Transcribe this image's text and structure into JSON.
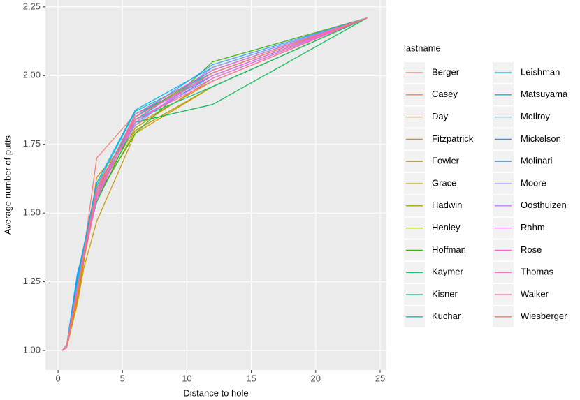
{
  "chart_data": {
    "type": "line",
    "x_label": "Distance to hole",
    "y_label": "Average number of putts",
    "legend_title": "lastname",
    "x": [
      0.33,
      0.67,
      1.5,
      2,
      3,
      6,
      12,
      24
    ],
    "xlim": [
      -0.98,
      25.49
    ],
    "xticks": [
      0,
      5,
      10,
      15,
      20,
      25
    ],
    "ylim": [
      0.929,
      2.275
    ],
    "yticks": [
      {
        "value": 1,
        "label": "1.00"
      },
      {
        "value": 1.25,
        "label": "1.25"
      },
      {
        "value": 1.5,
        "label": "1.50"
      },
      {
        "value": 1.75,
        "label": "1.75"
      },
      {
        "value": 2,
        "label": "2.00"
      },
      {
        "value": 2.25,
        "label": "2.25"
      }
    ],
    "grid": true,
    "series": [
      {
        "name": "Berger",
        "color": "#F8766D",
        "values": [
          1.0,
          1.01,
          1.22,
          1.36,
          1.7,
          1.86,
          2.0,
          2.21
        ]
      },
      {
        "name": "Casey",
        "color": "#F07F4F",
        "values": [
          1.0,
          1.02,
          1.2,
          1.35,
          1.6,
          1.83,
          2.01,
          2.21
        ]
      },
      {
        "name": "Day",
        "color": "#E58700",
        "values": [
          1.0,
          1.01,
          1.19,
          1.34,
          1.58,
          1.82,
          1.98,
          2.21
        ]
      },
      {
        "name": "Fitzpatrick",
        "color": "#D89000",
        "values": [
          1.0,
          1.01,
          1.18,
          1.32,
          1.63,
          1.8,
          1.96,
          2.21
        ]
      },
      {
        "name": "Fowler",
        "color": "#C99800",
        "values": [
          1.0,
          1.01,
          1.17,
          1.3,
          1.47,
          1.79,
          1.96,
          2.21
        ]
      },
      {
        "name": "Grace",
        "color": "#B79F00",
        "values": [
          1.0,
          1.02,
          1.2,
          1.33,
          1.55,
          1.8,
          1.96,
          2.21
        ]
      },
      {
        "name": "Hadwin",
        "color": "#A3A500",
        "values": [
          1.0,
          1.01,
          1.21,
          1.35,
          1.57,
          1.81,
          1.99,
          2.21
        ]
      },
      {
        "name": "Henley",
        "color": "#7CAE00",
        "values": [
          1.0,
          1.02,
          1.22,
          1.36,
          1.55,
          1.85,
          2.02,
          2.21
        ]
      },
      {
        "name": "Hoffman",
        "color": "#39B600",
        "values": [
          1.0,
          1.01,
          1.23,
          1.37,
          1.56,
          1.79,
          2.05,
          2.21
        ]
      },
      {
        "name": "Kaymer",
        "color": "#00BB4E",
        "values": [
          1.0,
          1.02,
          1.24,
          1.36,
          1.54,
          1.83,
          1.895,
          2.21
        ]
      },
      {
        "name": "Kisner",
        "color": "#00BF7D",
        "values": [
          1.0,
          1.01,
          1.22,
          1.35,
          1.56,
          1.84,
          1.96,
          2.21
        ]
      },
      {
        "name": "Kuchar",
        "color": "#00C1A3",
        "values": [
          1.0,
          1.02,
          1.23,
          1.36,
          1.58,
          1.86,
          2.0,
          2.21
        ]
      },
      {
        "name": "Leishman",
        "color": "#00BFC4",
        "values": [
          1.0,
          1.01,
          1.25,
          1.37,
          1.6,
          1.87,
          2.01,
          2.21
        ]
      },
      {
        "name": "Matsuyama",
        "color": "#00BAE0",
        "values": [
          1.0,
          1.02,
          1.26,
          1.37,
          1.59,
          1.84,
          2.02,
          2.21
        ]
      },
      {
        "name": "McIlroy",
        "color": "#00B0F6",
        "values": [
          1.0,
          1.01,
          1.27,
          1.38,
          1.61,
          1.875,
          2.03,
          2.21
        ]
      },
      {
        "name": "Mickelson",
        "color": "#00A5FF",
        "values": [
          1.0,
          1.02,
          1.28,
          1.37,
          1.57,
          1.83,
          2.0,
          2.21
        ]
      },
      {
        "name": "Molinari",
        "color": "#35A2FF",
        "values": [
          1.0,
          1.01,
          1.24,
          1.36,
          1.58,
          1.85,
          2.04,
          2.21
        ]
      },
      {
        "name": "Moore",
        "color": "#9590FF",
        "values": [
          1.0,
          1.02,
          1.23,
          1.35,
          1.59,
          1.82,
          2.03,
          2.21
        ]
      },
      {
        "name": "Oosthuizen",
        "color": "#C77CFF",
        "values": [
          1.0,
          1.01,
          1.22,
          1.36,
          1.57,
          1.83,
          2.01,
          2.21
        ]
      },
      {
        "name": "Rahm",
        "color": "#E76BF3",
        "values": [
          1.0,
          1.02,
          1.21,
          1.35,
          1.56,
          1.84,
          1.99,
          2.21
        ]
      },
      {
        "name": "Rose",
        "color": "#FA62DB",
        "values": [
          1.0,
          1.01,
          1.22,
          1.34,
          1.55,
          1.85,
          2.0,
          2.21
        ]
      },
      {
        "name": "Thomas",
        "color": "#FF62BC",
        "values": [
          1.0,
          1.02,
          1.23,
          1.36,
          1.58,
          1.86,
          2.02,
          2.21
        ]
      },
      {
        "name": "Walker",
        "color": "#FF6A98",
        "values": [
          1.0,
          1.01,
          1.21,
          1.35,
          1.57,
          1.84,
          1.98,
          2.21
        ]
      },
      {
        "name": "Wiesberger",
        "color": "#F8766D",
        "values": [
          1.0,
          1.02,
          1.22,
          1.36,
          1.59,
          1.85,
          2.01,
          2.21
        ]
      }
    ]
  }
}
